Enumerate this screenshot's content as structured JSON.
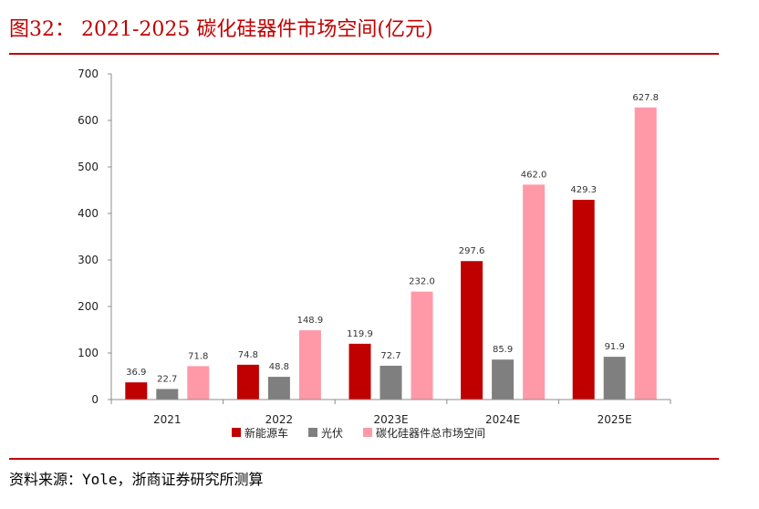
{
  "title": "图32： 2021-2025 碳化硅器件市场空间(亿元)",
  "source": "资料来源：Yole，浙商证券研究所测算",
  "colors": {
    "accent": "#c00000",
    "series": [
      "#c00000",
      "#7f7f7f",
      "#ff99a8"
    ]
  },
  "chart_data": {
    "type": "bar",
    "title": "2021-2025 碳化硅器件市场空间(亿元)",
    "xlabel": "",
    "ylabel": "",
    "categories": [
      "2021",
      "2022",
      "2023E",
      "2024E",
      "2025E"
    ],
    "ylim": [
      0,
      700
    ],
    "yticks": [
      "0",
      "100",
      "200",
      "300",
      "400",
      "500",
      "600",
      "700"
    ],
    "legend_position": "bottom",
    "series": [
      {
        "name": "新能源车",
        "values": [
          36.9,
          74.8,
          119.9,
          297.6,
          429.3
        ],
        "labels": [
          "36.9",
          "74.8",
          "119.9",
          "297.6",
          "429.3"
        ]
      },
      {
        "name": "光伏",
        "values": [
          22.7,
          48.8,
          72.7,
          85.9,
          91.9
        ],
        "labels": [
          "22.7",
          "48.8",
          "72.7",
          "85.9",
          "91.9"
        ]
      },
      {
        "name": "碳化硅器件总市场空间",
        "values": [
          71.8,
          148.9,
          232.0,
          462.0,
          627.8
        ],
        "labels": [
          "71.8",
          "148.9",
          "232.0",
          "462.0",
          "627.8"
        ]
      }
    ]
  }
}
